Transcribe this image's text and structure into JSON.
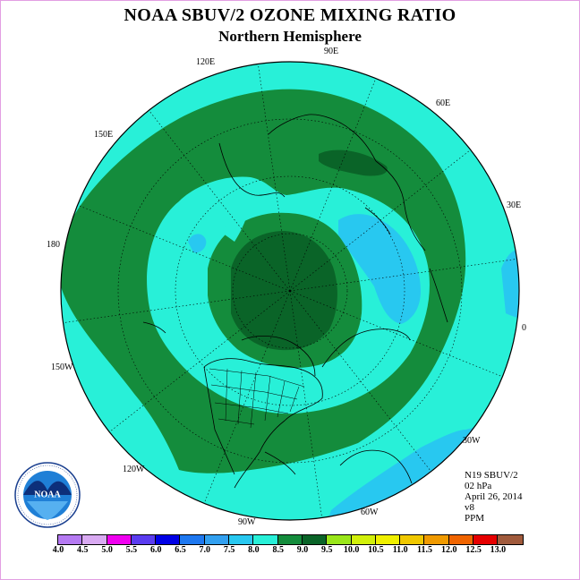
{
  "header": {
    "title": "NOAA SBUV/2 OZONE MIXING RATIO",
    "subtitle": "Northern Hemisphere"
  },
  "info": {
    "satellite": "N19 SBUV/2",
    "level": "02 hPa",
    "date": "April 26, 2014",
    "version": "v8",
    "units": "PPM"
  },
  "longitude_labels": {
    "lon_90e": "90E",
    "lon_60e": "60E",
    "lon_30e": "30E",
    "lon_0": "0",
    "lon_30w": "30W",
    "lon_60w": "60W",
    "lon_90w": "90W",
    "lon_120w": "120W",
    "lon_150w": "150W",
    "lon_180": "180",
    "lon_150e": "150E",
    "lon_120e": "120E"
  },
  "colorbar": {
    "colors": [
      "#b57af2",
      "#d9aaf2",
      "#f000f0",
      "#5a3cf0",
      "#0000e6",
      "#1e78f0",
      "#32a0f0",
      "#28c8f0",
      "#28f0d8",
      "#148c3c",
      "#0a6428",
      "#9ae61a",
      "#d2f00a",
      "#f0f000",
      "#f0c800",
      "#f09a00",
      "#f06400",
      "#e60000",
      "#a05a3c"
    ],
    "ticks": [
      "4.0",
      "4.5",
      "5.0",
      "5.5",
      "6.0",
      "6.5",
      "7.0",
      "7.5",
      "8.0",
      "8.5",
      "9.0",
      "9.5",
      "10.0",
      "10.5",
      "11.0",
      "11.5",
      "12.0",
      "12.5",
      "13.0"
    ]
  },
  "map_legend": {
    "fill_7_0_7_5": "#28c8f0",
    "fill_7_5_8_0": "#28f0d8",
    "fill_8_0_8_5": "#148c3c",
    "fill_8_5_9_0": "#0a6428"
  },
  "logo": {
    "text": "NOAA"
  }
}
